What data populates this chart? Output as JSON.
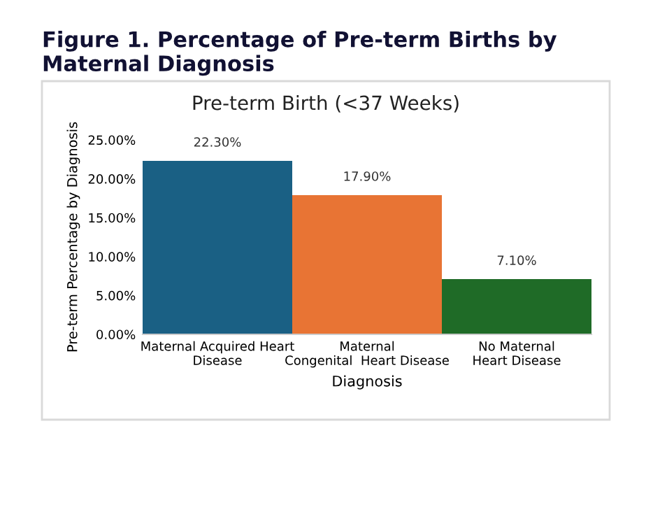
{
  "chart_data": {
    "type": "bar",
    "title": "Figure 1. Percentage of Pre-term Births by Maternal Diagnosis",
    "subtitle": "Pre-term Birth (<37 Weeks)",
    "xlabel": "Diagnosis",
    "ylabel": "Pre-term Percentage by Diagnosis",
    "categories": [
      "Maternal Acquired Heart\nDisease",
      "Maternal\nCongenital  Heart Disease",
      "No Maternal\nHeart Disease"
    ],
    "values": [
      22.3,
      17.9,
      7.1
    ],
    "colors": [
      "#1a6084",
      "#e87434",
      "#1f6b27"
    ],
    "value_labels": [
      "22.30%",
      "17.90%",
      "7.10%"
    ],
    "ylim": [
      0,
      25
    ],
    "yticks": [
      {
        "value": 0,
        "label": "0.00%"
      },
      {
        "value": 5,
        "label": "5.00%"
      },
      {
        "value": 10,
        "label": "10.00%"
      },
      {
        "value": 15,
        "label": "15.00%"
      },
      {
        "value": 20,
        "label": "20.00%"
      },
      {
        "value": 25,
        "label": "25.00%"
      }
    ],
    "grid": false,
    "legend": false
  }
}
